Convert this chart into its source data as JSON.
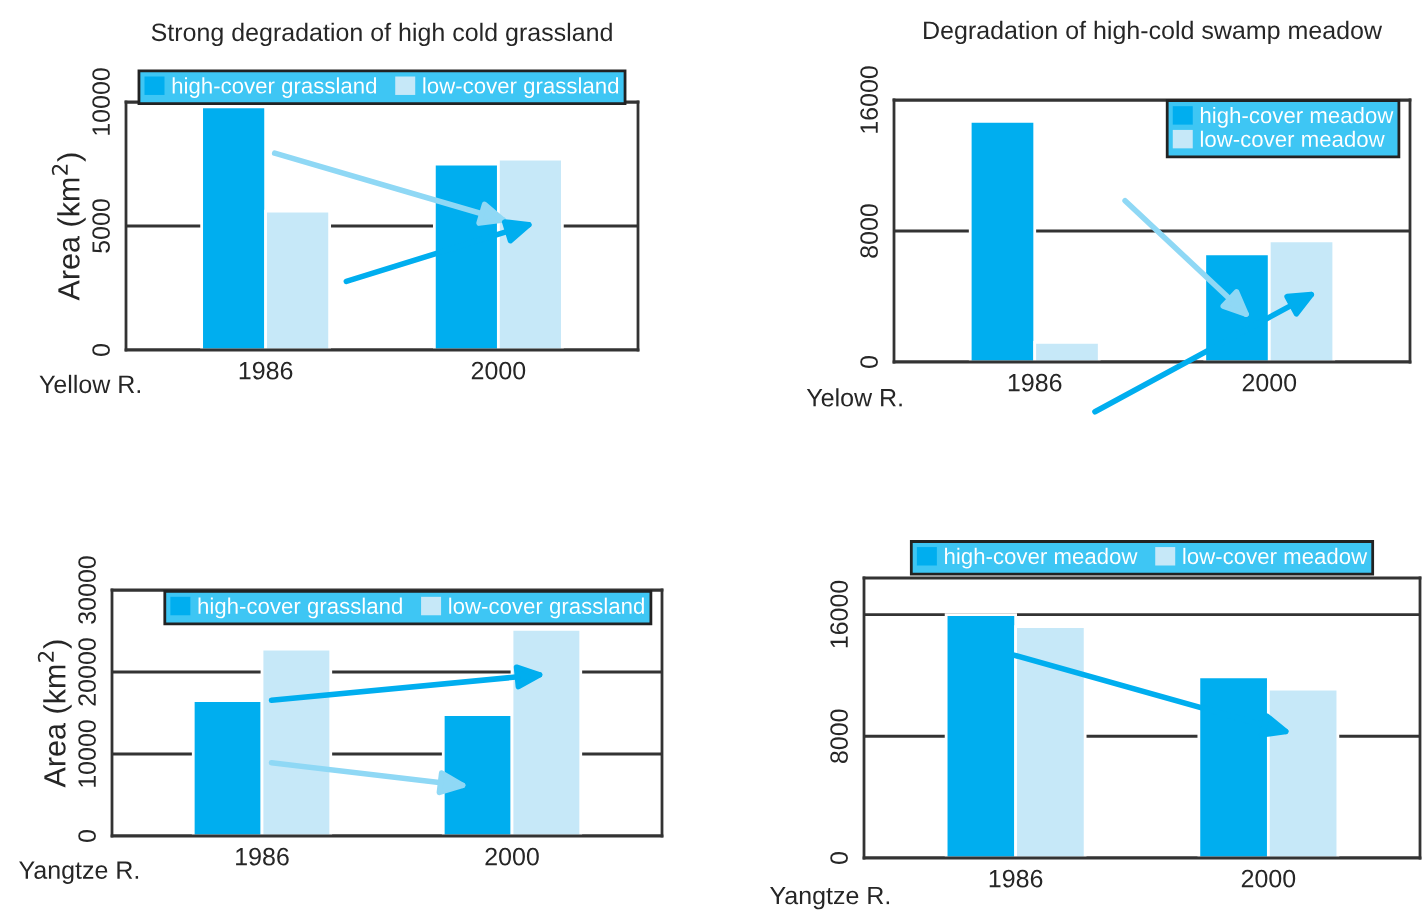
{
  "chart_data": [
    {
      "type": "bar",
      "title": "Strong degradation of high cold grassland",
      "xlabel": "Yellow R.",
      "ylabel": "Area (km$^{2}$)",
      "categories": [
        "1986",
        "2000"
      ],
      "series": [
        {
          "name": "high-cover grassland",
          "color": "#00aeef",
          "values": [
            9800,
            7500
          ]
        },
        {
          "name": "low-cover grassland",
          "color": "#c6e8f8",
          "values": [
            5600,
            7700
          ]
        }
      ],
      "ylim": [
        0,
        10000
      ],
      "yticks": [
        0,
        5000,
        10000
      ],
      "grid": "y",
      "legend": "top"
    },
    {
      "type": "bar",
      "title": "Degradation of high-cold swamp meadow",
      "xlabel": "Yelow R.",
      "categories": [
        "1986",
        "2000"
      ],
      "series": [
        {
          "name": "high-cover meadow",
          "color": "#00aeef",
          "values": [
            14700,
            6600
          ]
        },
        {
          "name": "low-cover meadow",
          "color": "#c6e8f8",
          "values": [
            1200,
            7400
          ]
        }
      ],
      "ylim": [
        0,
        16000
      ],
      "yticks": [
        0,
        8000,
        16000
      ],
      "grid": "y",
      "legend": "top right"
    },
    {
      "type": "bar",
      "xlabel": "Yangtze R.",
      "ylabel": "Area (km$^{2}$)",
      "categories": [
        "1986",
        "2000"
      ],
      "series": [
        {
          "name": "high-cover grassland",
          "color": "#00aeef",
          "values": [
            16500,
            14800
          ]
        },
        {
          "name": "low-cover grassland",
          "color": "#c6e8f8",
          "values": [
            22800,
            25200
          ]
        }
      ],
      "ylim": [
        0,
        30000
      ],
      "yticks": [
        0,
        10000,
        20000,
        30000
      ],
      "grid": "y",
      "legend": "top right"
    },
    {
      "type": "bar",
      "xlabel": "Yangtze R.",
      "categories": [
        "1986",
        "2000"
      ],
      "series": [
        {
          "name": "high-cover meadow",
          "color": "#00aeef",
          "values": [
            16000,
            11900
          ]
        },
        {
          "name": "low-cover meadow",
          "color": "#c6e8f8",
          "values": [
            15200,
            11100
          ]
        }
      ],
      "ylim": [
        0,
        18400
      ],
      "yticks": [
        0,
        8000,
        16000
      ],
      "grid": "y",
      "legend": "top"
    }
  ]
}
